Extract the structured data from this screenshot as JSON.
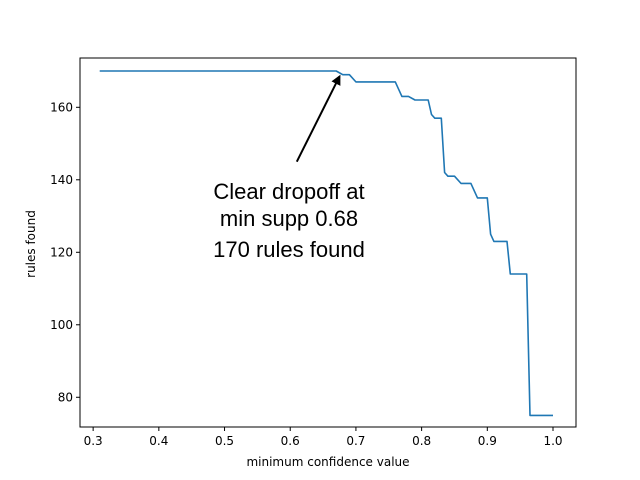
{
  "chart_data": {
    "type": "line",
    "xlabel": "minimum confidence value",
    "ylabel": "rules found",
    "xlim": [
      0.28,
      1.035
    ],
    "ylim": [
      71.8,
      173.6
    ],
    "xticks": [
      0.3,
      0.4,
      0.5,
      0.6,
      0.7,
      0.8,
      0.9,
      1.0
    ],
    "xtick_labels": [
      "0.3",
      "0.4",
      "0.5",
      "0.6",
      "0.7",
      "0.8",
      "0.9",
      "1.0"
    ],
    "yticks": [
      80,
      100,
      120,
      140,
      160
    ],
    "ytick_labels": [
      "80",
      "100",
      "120",
      "140",
      "160"
    ],
    "grid": false,
    "series": [
      {
        "color": "#1f77b4",
        "x": [
          0.31,
          0.67,
          0.68,
          0.69,
          0.7,
          0.76,
          0.77,
          0.78,
          0.79,
          0.8,
          0.81,
          0.815,
          0.82,
          0.83,
          0.835,
          0.84,
          0.85,
          0.86,
          0.87,
          0.875,
          0.88,
          0.885,
          0.89,
          0.9,
          0.905,
          0.91,
          0.92,
          0.93,
          0.935,
          0.94,
          0.95,
          0.96,
          0.965,
          0.97,
          0.98,
          0.99,
          1.0
        ],
        "y": [
          170,
          170,
          169,
          169,
          167,
          167,
          163,
          163,
          162,
          162,
          162,
          158,
          157,
          157,
          142,
          141,
          141,
          139,
          139,
          139,
          137,
          135,
          135,
          135,
          125,
          123,
          123,
          123,
          114,
          114,
          114,
          114,
          75,
          75,
          75,
          75,
          75
        ]
      }
    ],
    "annotation": {
      "lines": [
        "Clear dropoff at",
        "min supp 0.68",
        "170 rules found"
      ],
      "arrow_to": [
        0.675,
        168.5
      ],
      "arrow_from": [
        0.61,
        145
      ]
    }
  }
}
